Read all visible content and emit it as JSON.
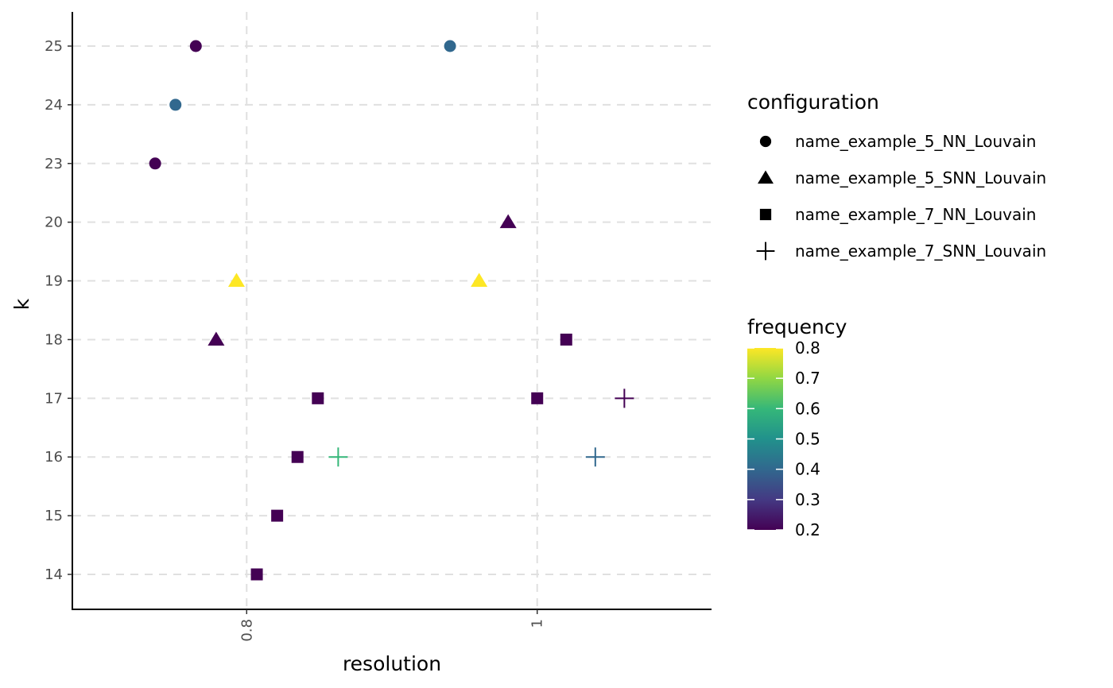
{
  "chart_data": {
    "type": "scatter",
    "title": "",
    "xlabel": "resolution",
    "ylabel": "k",
    "xlim": [
      0.68,
      1.12
    ],
    "x_ticks": [
      {
        "value": 0.8,
        "label": "0.8"
      },
      {
        "value": 1.0,
        "label": "1"
      }
    ],
    "y_categories": [
      "14",
      "15",
      "16",
      "17",
      "18",
      "19",
      "20",
      "23",
      "24",
      "25"
    ],
    "grid": true,
    "legend_position": "right",
    "shape_legend": {
      "title": "configuration",
      "items": [
        {
          "label": "name_example_5_NN_Louvain",
          "shape": "circle"
        },
        {
          "label": "name_example_5_SNN_Louvain",
          "shape": "triangle"
        },
        {
          "label": "name_example_7_NN_Louvain",
          "shape": "square"
        },
        {
          "label": "name_example_7_SNN_Louvain",
          "shape": "plus"
        }
      ]
    },
    "color_legend": {
      "title": "frequency",
      "min": 0.2,
      "max": 0.8,
      "ticks": [
        "0.8",
        "0.7",
        "0.6",
        "0.5",
        "0.4",
        "0.3",
        "0.2"
      ],
      "palette": [
        "#440154",
        "#443983",
        "#31688e",
        "#21918c",
        "#35b779",
        "#90d743",
        "#fde725"
      ]
    },
    "series": [
      {
        "config": "name_example_5_NN_Louvain",
        "shape": "circle",
        "points": [
          {
            "x": 0.765,
            "k": "25",
            "frequency": 0.2
          },
          {
            "x": 0.94,
            "k": "25",
            "frequency": 0.4
          },
          {
            "x": 0.751,
            "k": "24",
            "frequency": 0.4
          },
          {
            "x": 0.737,
            "k": "23",
            "frequency": 0.2
          }
        ]
      },
      {
        "config": "name_example_5_SNN_Louvain",
        "shape": "triangle",
        "points": [
          {
            "x": 0.98,
            "k": "20",
            "frequency": 0.2
          },
          {
            "x": 0.793,
            "k": "19",
            "frequency": 0.8
          },
          {
            "x": 0.96,
            "k": "19",
            "frequency": 0.8
          },
          {
            "x": 0.779,
            "k": "18",
            "frequency": 0.2
          }
        ]
      },
      {
        "config": "name_example_7_NN_Louvain",
        "shape": "square",
        "points": [
          {
            "x": 1.02,
            "k": "18",
            "frequency": 0.2
          },
          {
            "x": 0.849,
            "k": "17",
            "frequency": 0.2
          },
          {
            "x": 1.0,
            "k": "17",
            "frequency": 0.2
          },
          {
            "x": 0.835,
            "k": "16",
            "frequency": 0.2
          },
          {
            "x": 0.821,
            "k": "15",
            "frequency": 0.2
          },
          {
            "x": 0.807,
            "k": "14",
            "frequency": 0.2
          }
        ]
      },
      {
        "config": "name_example_7_SNN_Louvain",
        "shape": "plus",
        "points": [
          {
            "x": 1.06,
            "k": "17",
            "frequency": 0.2
          },
          {
            "x": 0.863,
            "k": "16",
            "frequency": 0.6
          },
          {
            "x": 1.04,
            "k": "16",
            "frequency": 0.4
          }
        ]
      }
    ]
  }
}
